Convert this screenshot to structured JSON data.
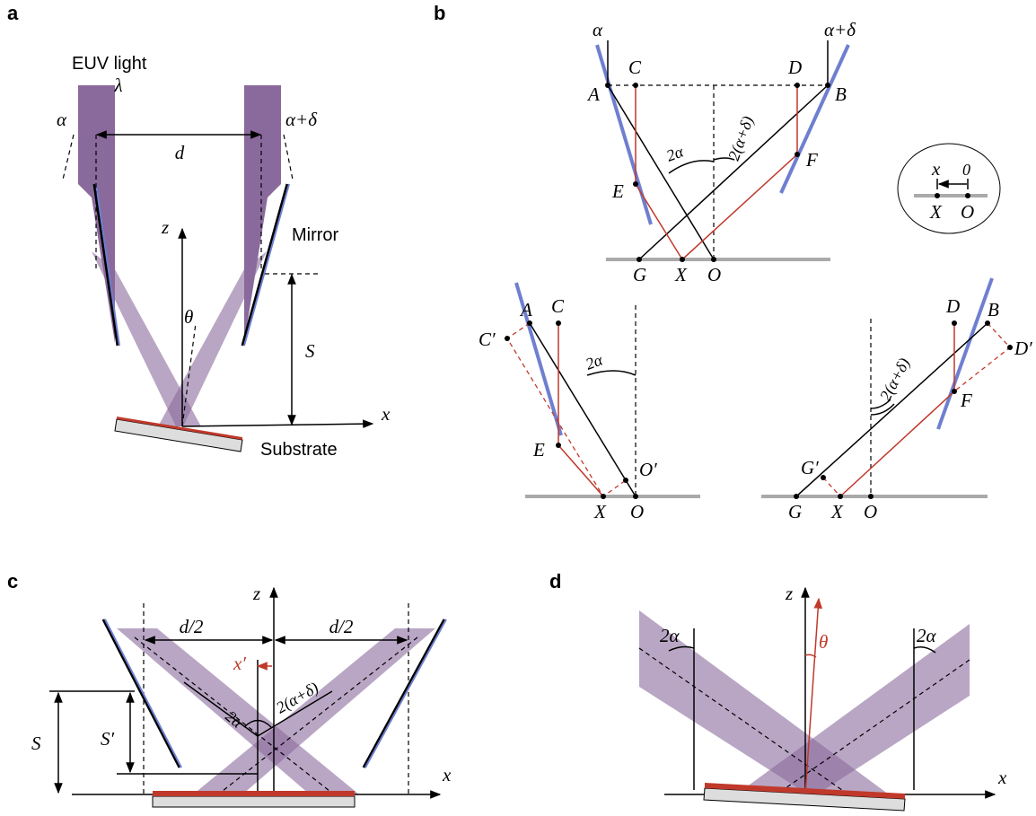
{
  "panel_a": {
    "label": "a",
    "light": "EUV light",
    "wavelength": "λ",
    "angle_left": "α",
    "angle_right": "α+δ",
    "distance": "d",
    "z_axis": "z",
    "mirror": "Mirror",
    "theta": "θ",
    "height": "S",
    "x_axis": "x",
    "substrate": "Substrate"
  },
  "panel_b": {
    "label": "b",
    "top": {
      "angle_left": "α",
      "angle_right": "α+δ",
      "A": "A",
      "B": "B",
      "C": "C",
      "D": "D",
      "E": "E",
      "F": "F",
      "G": "G",
      "X": "X",
      "O": "O",
      "angle_2a": "2α",
      "angle_2ad": "2(α+δ)"
    },
    "inset": {
      "x": "x",
      "zero": "0",
      "X": "X",
      "O": "O"
    },
    "bottom_left": {
      "A": "A",
      "C": "C",
      "C_prime": "C′",
      "E": "E",
      "angle_2a": "2α",
      "O_prime": "O′",
      "X": "X",
      "O": "O"
    },
    "bottom_right": {
      "D": "D",
      "B": "B",
      "D_prime": "D′",
      "F": "F",
      "angle_2ad": "2(α+δ)",
      "G_prime": "G′",
      "G": "G",
      "X": "X",
      "O": "O"
    }
  },
  "panel_c": {
    "label": "c",
    "z_axis": "z",
    "half_left": "d/2",
    "half_right": "d/2",
    "x_prime": "x′",
    "angle_2a": "2α",
    "angle_2ad": "2(α+δ)",
    "height": "S",
    "height_prime": "S′",
    "x_axis": "x"
  },
  "panel_d": {
    "label": "d",
    "z_axis": "z",
    "angle_left": "2α",
    "angle_right": "2α",
    "theta": "θ",
    "x_axis": "x"
  }
}
